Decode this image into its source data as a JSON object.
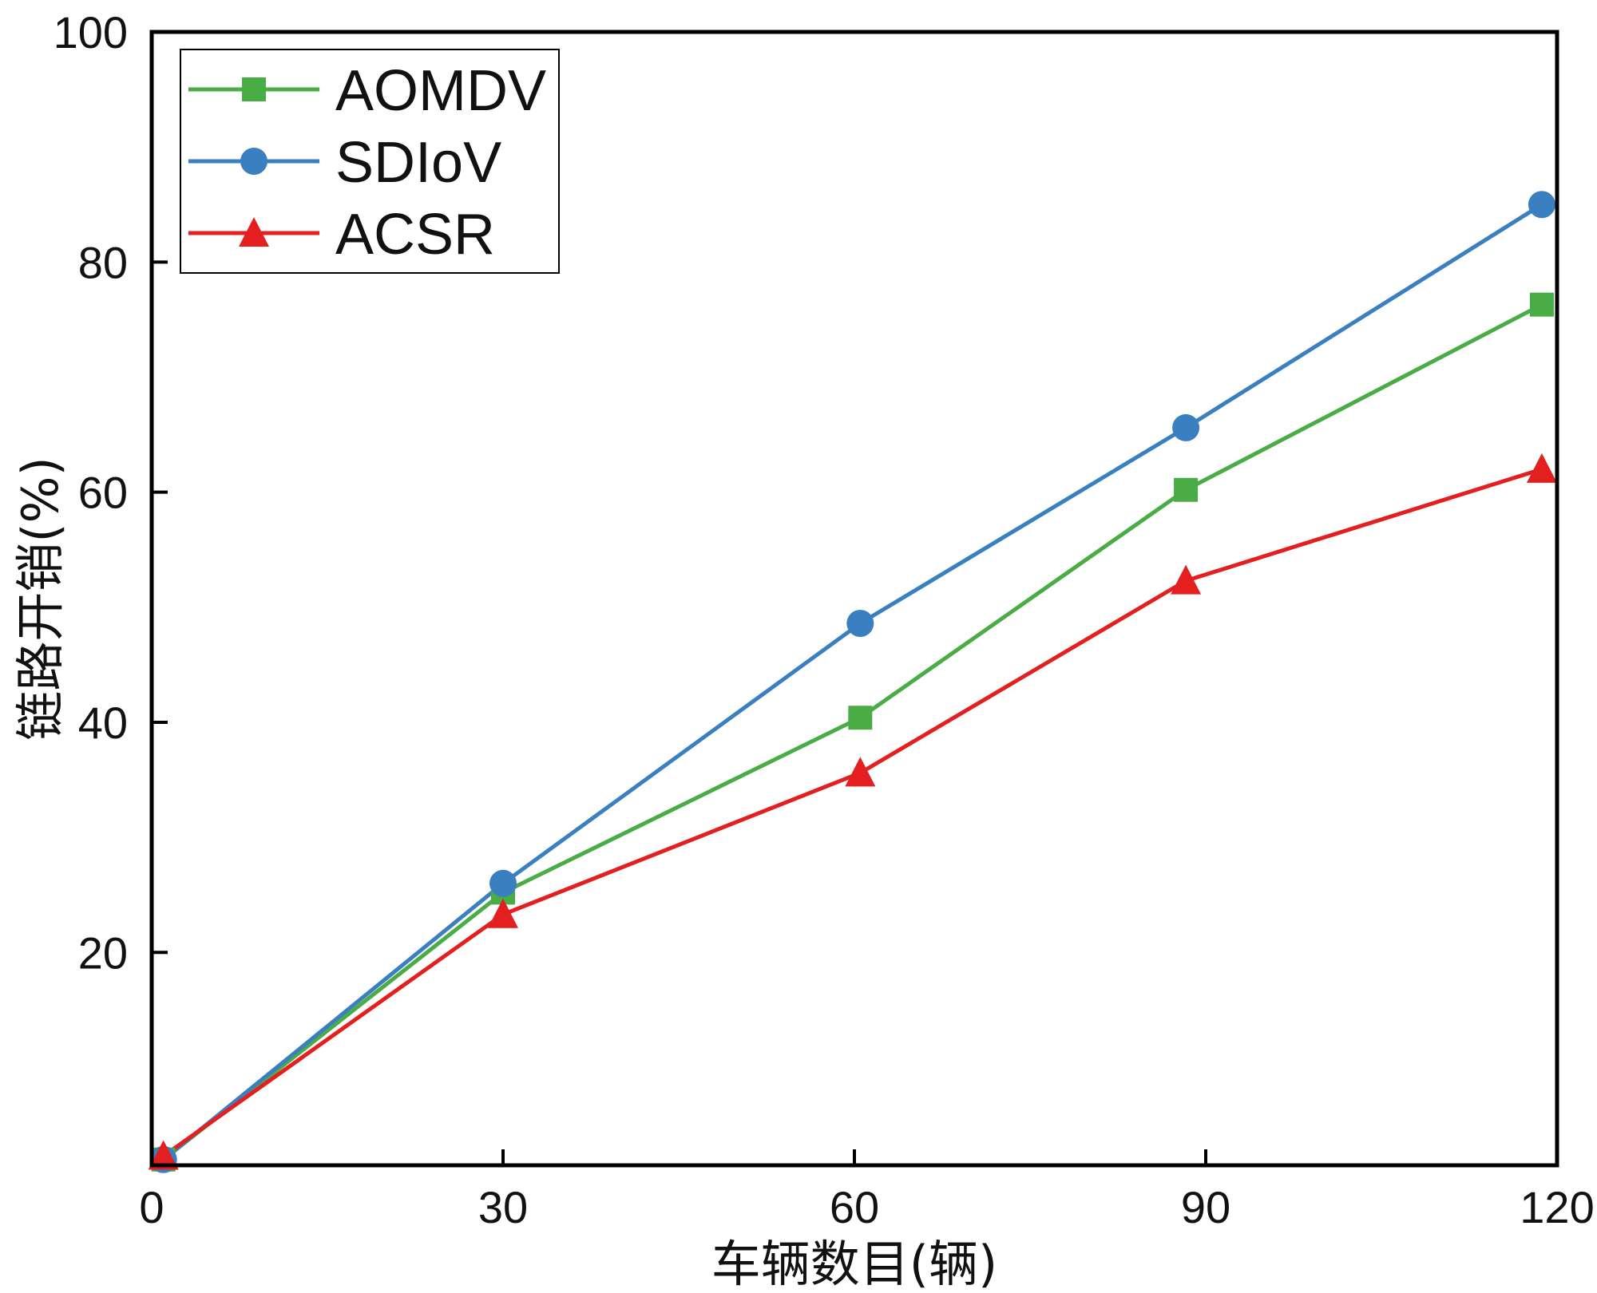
{
  "chart_data": {
    "type": "line",
    "title": "",
    "xlabel": "车辆数目(辆)",
    "ylabel": "链路开销(%)",
    "xlim": [
      0,
      120
    ],
    "ylim": [
      1.5,
      100
    ],
    "xticks": [
      "0",
      "30",
      "60",
      "90",
      "120"
    ],
    "yticks": [
      "20",
      "40",
      "60",
      "80",
      "100"
    ],
    "legend_position": "top-left",
    "grid": false,
    "series": [
      {
        "name": "AOMDV",
        "color": "#4aac45",
        "marker": "square",
        "x": [
          1,
          30,
          60.5,
          88.3,
          118.7
        ],
        "y": [
          2.0,
          25.2,
          40.4,
          60.2,
          76.3
        ]
      },
      {
        "name": "SDIoV",
        "color": "#3a7fc0",
        "marker": "circle",
        "x": [
          1,
          30,
          60.5,
          88.3,
          118.7
        ],
        "y": [
          2.0,
          26.0,
          48.6,
          65.6,
          85.0
        ]
      },
      {
        "name": "ACSR",
        "color": "#e3201f",
        "marker": "triangle",
        "x": [
          1,
          30,
          60.5,
          88.3,
          118.7
        ],
        "y": [
          2.3,
          23.3,
          35.6,
          52.3,
          62.0
        ]
      }
    ]
  }
}
